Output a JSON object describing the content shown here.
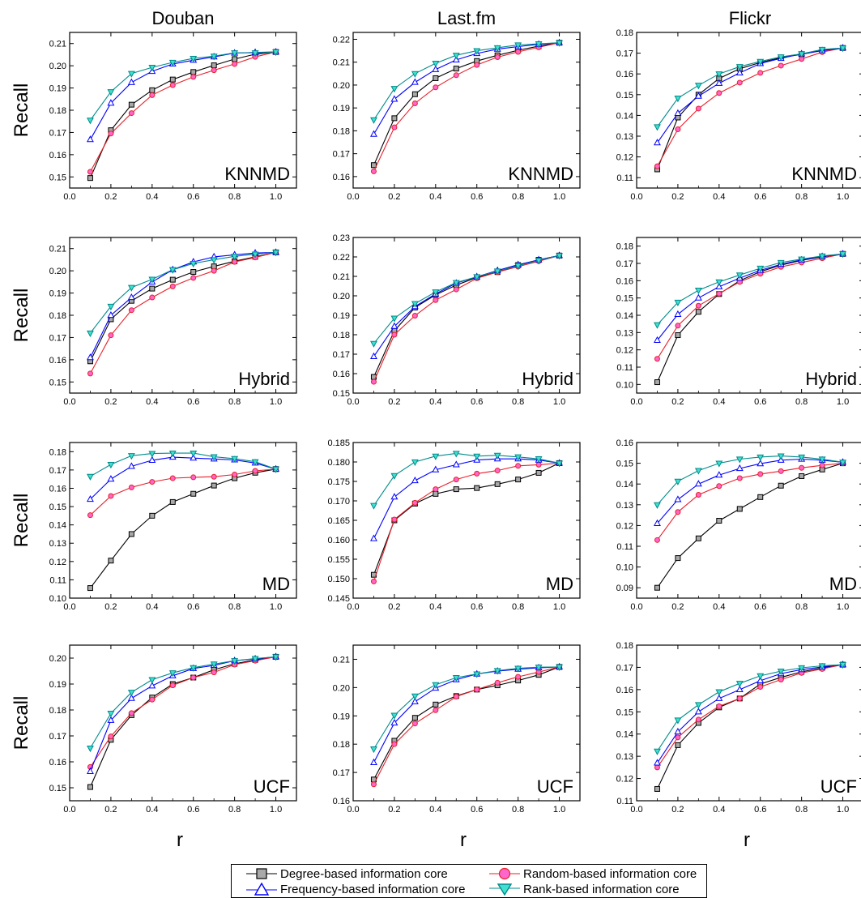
{
  "column_titles": [
    "Douban",
    "Last.fm",
    "Flickr"
  ],
  "row_ylabels": [
    "Recall",
    "Recall",
    "Recall",
    "Recall"
  ],
  "xlabel": "r",
  "x": [
    0.1,
    0.2,
    0.3,
    0.4,
    0.5,
    0.6,
    0.7,
    0.8,
    0.9,
    1.0
  ],
  "xticks": [
    "0.0",
    "0.2",
    "0.4",
    "0.6",
    "0.8",
    "1.0"
  ],
  "legend": {
    "degree": "Degree-based information core",
    "random": "Random-based information core",
    "frequency": "Frequency-based information core",
    "rank": "Rank-based information core"
  },
  "colors": {
    "degree": "#000000",
    "degree_fill": "#a9a9a9",
    "random": "#e8202a",
    "random_fill": "#ff66cc",
    "frequency": "#0000ff",
    "frequency_fill": "#ffffff",
    "rank": "#008b8b",
    "rank_fill": "#40e0d0"
  },
  "chart_data": [
    {
      "type": "line",
      "method": "KNNMD",
      "dataset": "Douban",
      "ylim": [
        0.145,
        0.215
      ],
      "yticks": [
        "0.15",
        "0.16",
        "0.17",
        "0.18",
        "0.19",
        "0.20",
        "0.21"
      ],
      "series": [
        {
          "name": "Degree-based information core",
          "values": [
            0.1495,
            0.171,
            0.1825,
            0.189,
            0.1938,
            0.1972,
            0.2002,
            0.203,
            0.2052,
            0.2062
          ]
        },
        {
          "name": "Random-based information core",
          "values": [
            0.1523,
            0.1695,
            0.1787,
            0.1868,
            0.1913,
            0.195,
            0.198,
            0.2008,
            0.204,
            0.2062
          ]
        },
        {
          "name": "Frequency-based information core",
          "values": [
            0.1668,
            0.1832,
            0.1925,
            0.1975,
            0.2008,
            0.2025,
            0.204,
            0.2057,
            0.206,
            0.2062
          ]
        },
        {
          "name": "Rank-based information core",
          "values": [
            0.1755,
            0.1883,
            0.1965,
            0.1993,
            0.2015,
            0.2033,
            0.2043,
            0.2058,
            0.2058,
            0.2062
          ]
        }
      ]
    },
    {
      "type": "line",
      "method": "KNNMD",
      "dataset": "Last.fm",
      "ylim": [
        0.155,
        0.223
      ],
      "yticks": [
        "0.16",
        "0.17",
        "0.18",
        "0.19",
        "0.20",
        "0.21",
        "0.22"
      ],
      "series": [
        {
          "name": "Degree-based information core",
          "values": [
            0.165,
            0.1855,
            0.196,
            0.203,
            0.2072,
            0.2105,
            0.213,
            0.2152,
            0.217,
            0.2185
          ]
        },
        {
          "name": "Random-based information core",
          "values": [
            0.1623,
            0.1815,
            0.192,
            0.199,
            0.2043,
            0.2088,
            0.2122,
            0.2145,
            0.2165,
            0.2185
          ]
        },
        {
          "name": "Frequency-based information core",
          "values": [
            0.1785,
            0.1938,
            0.2012,
            0.2068,
            0.211,
            0.2138,
            0.2157,
            0.2168,
            0.2178,
            0.2185
          ]
        },
        {
          "name": "Rank-based information core",
          "values": [
            0.1848,
            0.1985,
            0.205,
            0.2095,
            0.213,
            0.215,
            0.2163,
            0.2175,
            0.218,
            0.2185
          ]
        }
      ]
    },
    {
      "type": "line",
      "method": "KNNMD",
      "dataset": "Flickr",
      "ylim": [
        0.105,
        0.18
      ],
      "yticks": [
        "0.11",
        "0.12",
        "0.13",
        "0.14",
        "0.15",
        "0.16",
        "0.17",
        "0.18"
      ],
      "series": [
        {
          "name": "Degree-based information core",
          "values": [
            0.114,
            0.139,
            0.15,
            0.1578,
            0.1625,
            0.1655,
            0.1678,
            0.1695,
            0.1713,
            0.1725
          ]
        },
        {
          "name": "Random-based information core",
          "values": [
            0.1155,
            0.1333,
            0.1433,
            0.1508,
            0.1558,
            0.1605,
            0.164,
            0.1672,
            0.1705,
            0.1725
          ]
        },
        {
          "name": "Frequency-based information core",
          "values": [
            0.1268,
            0.141,
            0.1493,
            0.1555,
            0.1605,
            0.165,
            0.1675,
            0.1697,
            0.1712,
            0.1725
          ]
        },
        {
          "name": "Rank-based information core",
          "values": [
            0.1345,
            0.1483,
            0.1545,
            0.16,
            0.1635,
            0.166,
            0.1682,
            0.1697,
            0.1718,
            0.1725
          ]
        }
      ]
    },
    {
      "type": "line",
      "method": "Hybrid",
      "dataset": "Douban",
      "ylim": [
        0.145,
        0.215
      ],
      "yticks": [
        "0.15",
        "0.16",
        "0.17",
        "0.18",
        "0.19",
        "0.20",
        "0.21"
      ],
      "series": [
        {
          "name": "Degree-based information core",
          "values": [
            0.1593,
            0.1782,
            0.1865,
            0.192,
            0.196,
            0.1995,
            0.202,
            0.2043,
            0.2063,
            0.2083
          ]
        },
        {
          "name": "Random-based information core",
          "values": [
            0.1538,
            0.171,
            0.1823,
            0.188,
            0.193,
            0.1968,
            0.2,
            0.204,
            0.206,
            0.2083
          ]
        },
        {
          "name": "Frequency-based information core",
          "values": [
            0.161,
            0.18,
            0.188,
            0.195,
            0.2005,
            0.204,
            0.2063,
            0.2072,
            0.208,
            0.2083
          ]
        },
        {
          "name": "Rank-based information core",
          "values": [
            0.172,
            0.184,
            0.1925,
            0.1962,
            0.2005,
            0.2033,
            0.205,
            0.2065,
            0.2075,
            0.2083
          ]
        }
      ]
    },
    {
      "type": "line",
      "method": "Hybrid",
      "dataset": "Last.fm",
      "ylim": [
        0.15,
        0.23
      ],
      "yticks": [
        "0.15",
        "0.16",
        "0.17",
        "0.18",
        "0.19",
        "0.20",
        "0.21",
        "0.22",
        "0.23"
      ],
      "series": [
        {
          "name": "Degree-based information core",
          "values": [
            0.1583,
            0.182,
            0.194,
            0.2005,
            0.2055,
            0.2095,
            0.2122,
            0.2158,
            0.2185,
            0.2207
          ]
        },
        {
          "name": "Random-based information core",
          "values": [
            0.1558,
            0.18,
            0.1898,
            0.1978,
            0.2033,
            0.209,
            0.2122,
            0.215,
            0.2178,
            0.2207
          ]
        },
        {
          "name": "Frequency-based information core",
          "values": [
            0.1688,
            0.1843,
            0.1945,
            0.201,
            0.2065,
            0.2098,
            0.213,
            0.216,
            0.2185,
            0.2207
          ]
        },
        {
          "name": "Rank-based information core",
          "values": [
            0.1755,
            0.1885,
            0.196,
            0.202,
            0.2068,
            0.2098,
            0.2127,
            0.2155,
            0.2182,
            0.2207
          ]
        }
      ]
    },
    {
      "type": "line",
      "method": "Hybrid",
      "dataset": "Flickr",
      "ylim": [
        0.095,
        0.185
      ],
      "yticks": [
        "0.10",
        "0.11",
        "0.12",
        "0.13",
        "0.14",
        "0.15",
        "0.16",
        "0.17",
        "0.18"
      ],
      "series": [
        {
          "name": "Degree-based information core",
          "values": [
            0.1013,
            0.1285,
            0.142,
            0.1523,
            0.16,
            0.1652,
            0.169,
            0.1718,
            0.1738,
            0.1755
          ]
        },
        {
          "name": "Random-based information core",
          "values": [
            0.1148,
            0.134,
            0.1455,
            0.1525,
            0.1593,
            0.164,
            0.168,
            0.1705,
            0.173,
            0.1755
          ]
        },
        {
          "name": "Frequency-based information core",
          "values": [
            0.1255,
            0.1405,
            0.15,
            0.1565,
            0.1615,
            0.166,
            0.1695,
            0.172,
            0.174,
            0.1755
          ]
        },
        {
          "name": "Rank-based information core",
          "values": [
            0.1345,
            0.1475,
            0.1545,
            0.1593,
            0.1633,
            0.1672,
            0.1705,
            0.1725,
            0.1743,
            0.1755
          ]
        }
      ]
    },
    {
      "type": "line",
      "method": "MD",
      "dataset": "Douban",
      "ylim": [
        0.1,
        0.185
      ],
      "yticks": [
        "0.10",
        "0.11",
        "0.12",
        "0.13",
        "0.14",
        "0.15",
        "0.16",
        "0.17",
        "0.18"
      ],
      "series": [
        {
          "name": "Degree-based information core",
          "values": [
            0.1055,
            0.1205,
            0.135,
            0.145,
            0.1525,
            0.157,
            0.1615,
            0.1655,
            0.1685,
            0.1705
          ]
        },
        {
          "name": "Random-based information core",
          "values": [
            0.1453,
            0.1558,
            0.1605,
            0.1635,
            0.1655,
            0.166,
            0.1663,
            0.1675,
            0.1695,
            0.1705
          ]
        },
        {
          "name": "Frequency-based information core",
          "values": [
            0.154,
            0.165,
            0.172,
            0.1753,
            0.177,
            0.1765,
            0.176,
            0.1755,
            0.1738,
            0.1705
          ]
        },
        {
          "name": "Rank-based information core",
          "values": [
            0.1665,
            0.173,
            0.1778,
            0.179,
            0.1792,
            0.1792,
            0.1772,
            0.1762,
            0.1745,
            0.1705
          ]
        }
      ]
    },
    {
      "type": "line",
      "method": "MD",
      "dataset": "Last.fm",
      "ylim": [
        0.145,
        0.185
      ],
      "yticks": [
        "0.145",
        "0.150",
        "0.155",
        "0.160",
        "0.165",
        "0.170",
        "0.175",
        "0.180",
        "0.185"
      ],
      "series": [
        {
          "name": "Degree-based information core",
          "values": [
            0.151,
            0.165,
            0.1693,
            0.1718,
            0.173,
            0.1733,
            0.1743,
            0.1755,
            0.1772,
            0.1797
          ]
        },
        {
          "name": "Random-based information core",
          "values": [
            0.1493,
            0.1652,
            0.1695,
            0.173,
            0.1755,
            0.177,
            0.1778,
            0.179,
            0.1793,
            0.1797
          ]
        },
        {
          "name": "Frequency-based information core",
          "values": [
            0.1603,
            0.171,
            0.1752,
            0.178,
            0.1793,
            0.1805,
            0.1808,
            0.1808,
            0.1805,
            0.1797
          ]
        },
        {
          "name": "Rank-based information core",
          "values": [
            0.1688,
            0.1765,
            0.18,
            0.1815,
            0.1822,
            0.1815,
            0.1817,
            0.1813,
            0.1808,
            0.1797
          ]
        }
      ]
    },
    {
      "type": "line",
      "method": "MD",
      "dataset": "Flickr",
      "ylim": [
        0.085,
        0.16
      ],
      "yticks": [
        "0.09",
        "0.10",
        "0.11",
        "0.12",
        "0.13",
        "0.14",
        "0.15",
        "0.16"
      ],
      "series": [
        {
          "name": "Degree-based information core",
          "values": [
            0.09,
            0.1043,
            0.1138,
            0.1223,
            0.128,
            0.1337,
            0.1392,
            0.1438,
            0.147,
            0.15
          ]
        },
        {
          "name": "Random-based information core",
          "values": [
            0.113,
            0.1265,
            0.1348,
            0.139,
            0.1428,
            0.1448,
            0.1462,
            0.1478,
            0.149,
            0.15
          ]
        },
        {
          "name": "Frequency-based information core",
          "values": [
            0.121,
            0.1325,
            0.14,
            0.1443,
            0.1475,
            0.1498,
            0.1515,
            0.152,
            0.1515,
            0.1505
          ]
        },
        {
          "name": "Rank-based information core",
          "values": [
            0.13,
            0.1413,
            0.1465,
            0.15,
            0.152,
            0.153,
            0.1535,
            0.153,
            0.152,
            0.1505
          ]
        }
      ]
    },
    {
      "type": "line",
      "method": "UCF",
      "dataset": "Douban",
      "ylim": [
        0.145,
        0.205
      ],
      "yticks": [
        "0.15",
        "0.16",
        "0.17",
        "0.18",
        "0.19",
        "0.20"
      ],
      "series": [
        {
          "name": "Degree-based information core",
          "values": [
            0.1503,
            0.1685,
            0.178,
            0.1848,
            0.19,
            0.1925,
            0.1955,
            0.1978,
            0.1993,
            0.2005
          ]
        },
        {
          "name": "Random-based information core",
          "values": [
            0.158,
            0.1698,
            0.1788,
            0.184,
            0.1895,
            0.1925,
            0.1945,
            0.1975,
            0.199,
            0.2005
          ]
        },
        {
          "name": "Frequency-based information core",
          "values": [
            0.1563,
            0.176,
            0.1845,
            0.1893,
            0.1932,
            0.196,
            0.1972,
            0.199,
            0.1997,
            0.2005
          ]
        },
        {
          "name": "Rank-based information core",
          "values": [
            0.1653,
            0.1787,
            0.1868,
            0.1917,
            0.1943,
            0.1963,
            0.1977,
            0.199,
            0.1998,
            0.2005
          ]
        }
      ]
    },
    {
      "type": "line",
      "method": "UCF",
      "dataset": "Last.fm",
      "ylim": [
        0.16,
        0.215
      ],
      "yticks": [
        "0.16",
        "0.17",
        "0.18",
        "0.19",
        "0.20",
        "0.21"
      ],
      "series": [
        {
          "name": "Degree-based information core",
          "values": [
            0.1675,
            0.1812,
            0.1893,
            0.194,
            0.197,
            0.1993,
            0.2008,
            0.2025,
            0.2045,
            0.2073
          ]
        },
        {
          "name": "Random-based information core",
          "values": [
            0.1658,
            0.18,
            0.1873,
            0.192,
            0.1968,
            0.1993,
            0.2017,
            0.2038,
            0.2055,
            0.2073
          ]
        },
        {
          "name": "Frequency-based information core",
          "values": [
            0.1735,
            0.1875,
            0.195,
            0.1998,
            0.2028,
            0.2048,
            0.2058,
            0.2065,
            0.207,
            0.2073
          ]
        },
        {
          "name": "Rank-based information core",
          "values": [
            0.1783,
            0.1902,
            0.197,
            0.201,
            0.2035,
            0.2048,
            0.206,
            0.2068,
            0.2072,
            0.2073
          ]
        }
      ]
    },
    {
      "type": "line",
      "method": "UCF",
      "dataset": "Flickr",
      "ylim": [
        0.11,
        0.18
      ],
      "yticks": [
        "0.11",
        "0.12",
        "0.13",
        "0.14",
        "0.15",
        "0.16",
        "0.17",
        "0.18"
      ],
      "series": [
        {
          "name": "Degree-based information core",
          "values": [
            0.1153,
            0.135,
            0.145,
            0.152,
            0.156,
            0.1625,
            0.1655,
            0.168,
            0.1698,
            0.1712
          ]
        },
        {
          "name": "Random-based information core",
          "values": [
            0.125,
            0.1385,
            0.1465,
            0.1525,
            0.156,
            0.1612,
            0.1645,
            0.1675,
            0.1693,
            0.1712
          ]
        },
        {
          "name": "Frequency-based information core",
          "values": [
            0.127,
            0.141,
            0.15,
            0.156,
            0.16,
            0.164,
            0.1672,
            0.169,
            0.1702,
            0.1712
          ]
        },
        {
          "name": "Rank-based information core",
          "values": [
            0.1323,
            0.1463,
            0.1532,
            0.159,
            0.1628,
            0.1662,
            0.1683,
            0.1698,
            0.1707,
            0.1712
          ]
        }
      ]
    }
  ]
}
